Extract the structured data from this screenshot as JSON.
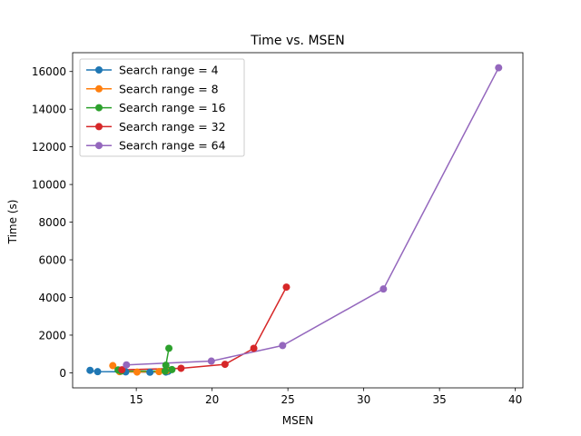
{
  "chart_data": {
    "type": "line",
    "title": "Time vs. MSEN",
    "xlabel": "MSEN",
    "ylabel": "Time (s)",
    "xlim": [
      10.8,
      40.5
    ],
    "ylim": [
      -800,
      17000
    ],
    "xticks": [
      15,
      20,
      25,
      30,
      35,
      40
    ],
    "yticks": [
      0,
      2000,
      4000,
      6000,
      8000,
      10000,
      12000,
      14000,
      16000
    ],
    "grid": false,
    "legend_position": "upper-left",
    "series": [
      {
        "name": "Search range = 4",
        "color": "#1f77b4",
        "points": [
          [
            11.95,
            130
          ],
          [
            12.45,
            60
          ],
          [
            14.3,
            50
          ],
          [
            15.9,
            30
          ],
          [
            16.95,
            40
          ],
          [
            17.1,
            80
          ]
        ]
      },
      {
        "name": "Search range = 8",
        "color": "#ff7f0e",
        "points": [
          [
            13.45,
            380
          ],
          [
            13.9,
            60
          ],
          [
            15.05,
            40
          ],
          [
            16.5,
            60
          ],
          [
            17.0,
            110
          ]
        ]
      },
      {
        "name": "Search range = 16",
        "color": "#2ca02c",
        "points": [
          [
            17.15,
            1300
          ],
          [
            16.95,
            400
          ],
          [
            17.35,
            170
          ],
          [
            16.9,
            90
          ],
          [
            14.0,
            90
          ],
          [
            13.8,
            150
          ]
        ]
      },
      {
        "name": "Search range = 32",
        "color": "#d62728",
        "points": [
          [
            24.9,
            4550
          ],
          [
            22.75,
            1300
          ],
          [
            20.85,
            450
          ],
          [
            17.95,
            240
          ],
          [
            14.05,
            160
          ]
        ]
      },
      {
        "name": "Search range = 64",
        "color": "#9467bd",
        "points": [
          [
            38.9,
            16200
          ],
          [
            31.3,
            4450
          ],
          [
            24.65,
            1450
          ],
          [
            19.95,
            620
          ],
          [
            14.35,
            420
          ]
        ]
      }
    ]
  }
}
